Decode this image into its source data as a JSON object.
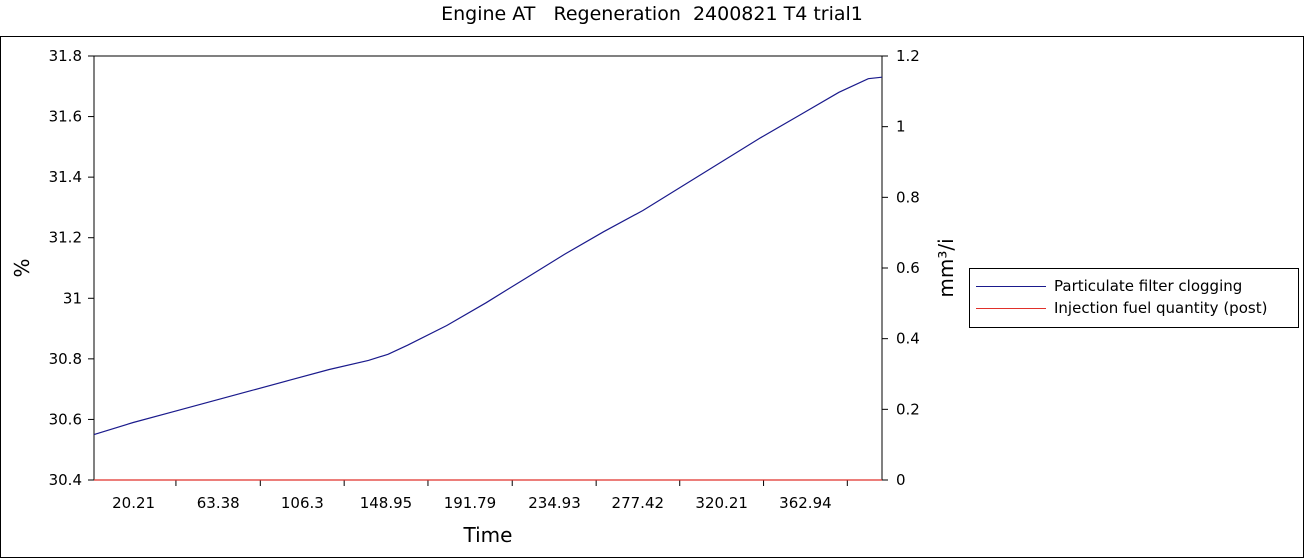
{
  "chart_data": {
    "type": "line",
    "title": "Engine AT   Regeneration  2400821 T4 trial1",
    "xlabel": "Time",
    "ylabel_left": "%",
    "ylabel_right": "mm³/i",
    "x_ticks": [
      "20.21",
      "63.38",
      "106.3",
      "148.95",
      "191.79",
      "234.93",
      "277.42",
      "320.21",
      "362.94"
    ],
    "x_tick_values": [
      20.21,
      63.38,
      106.3,
      148.95,
      191.79,
      234.93,
      277.42,
      320.21,
      362.94
    ],
    "xlim": [
      0,
      402
    ],
    "ylim_left": [
      30.4,
      31.8
    ],
    "ylim_right": [
      0,
      1.2
    ],
    "y_ticks_left": [
      "30.4",
      "30.6",
      "30.8",
      "31",
      "31.2",
      "31.4",
      "31.6",
      "31.8"
    ],
    "y_ticks_right": [
      "0",
      "0.2",
      "0.4",
      "0.6",
      "0.8",
      "1",
      "1.2"
    ],
    "legend_position": "right",
    "grid": false,
    "series": [
      {
        "name": "Particulate filter clogging",
        "axis": "left",
        "color": "#1a1a8c",
        "x": [
          0,
          20,
          40,
          60,
          80,
          100,
          120,
          140,
          150,
          160,
          180,
          200,
          220,
          240,
          260,
          280,
          300,
          320,
          340,
          360,
          380,
          395,
          402
        ],
        "y": [
          30.55,
          30.59,
          30.625,
          30.66,
          30.695,
          30.73,
          30.765,
          30.795,
          30.815,
          30.845,
          30.91,
          30.985,
          31.065,
          31.145,
          31.22,
          31.29,
          31.37,
          31.45,
          31.53,
          31.605,
          31.68,
          31.725,
          31.73
        ]
      },
      {
        "name": "Injection fuel quantity (post)",
        "axis": "right",
        "color": "#e0302a",
        "x": [
          0,
          402
        ],
        "y": [
          0,
          0
        ]
      }
    ]
  }
}
